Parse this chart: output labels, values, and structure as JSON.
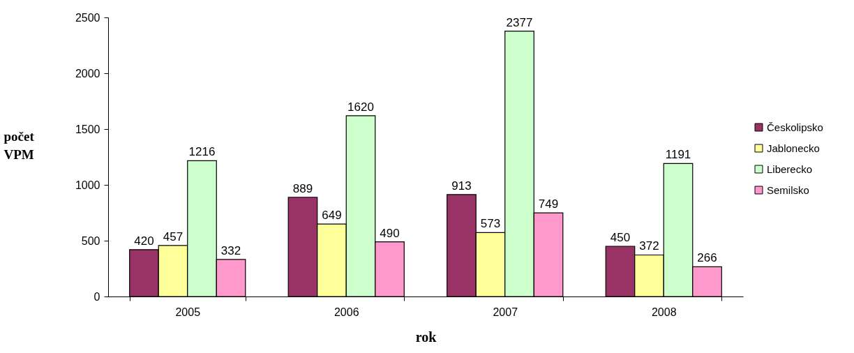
{
  "chart_data": {
    "type": "bar",
    "xlabel": "rok",
    "ylabel": "počet VPM",
    "categories": [
      "2005",
      "2006",
      "2007",
      "2008"
    ],
    "series": [
      {
        "name": "Českolipsko",
        "color": "#993366",
        "values": [
          420,
          889,
          913,
          450
        ]
      },
      {
        "name": "Jablonecko",
        "color": "#ffff99",
        "values": [
          457,
          649,
          573,
          372
        ]
      },
      {
        "name": "Liberecko",
        "color": "#ccffcc",
        "values": [
          1216,
          1620,
          2377,
          1191
        ]
      },
      {
        "name": "Semilsko",
        "color": "#ff99cc",
        "values": [
          332,
          490,
          749,
          266
        ]
      }
    ],
    "ylim": [
      0,
      2500
    ],
    "yticks": [
      0,
      500,
      1000,
      1500,
      2000,
      2500
    ],
    "data_labels": true,
    "legend": "right",
    "grid": false
  }
}
